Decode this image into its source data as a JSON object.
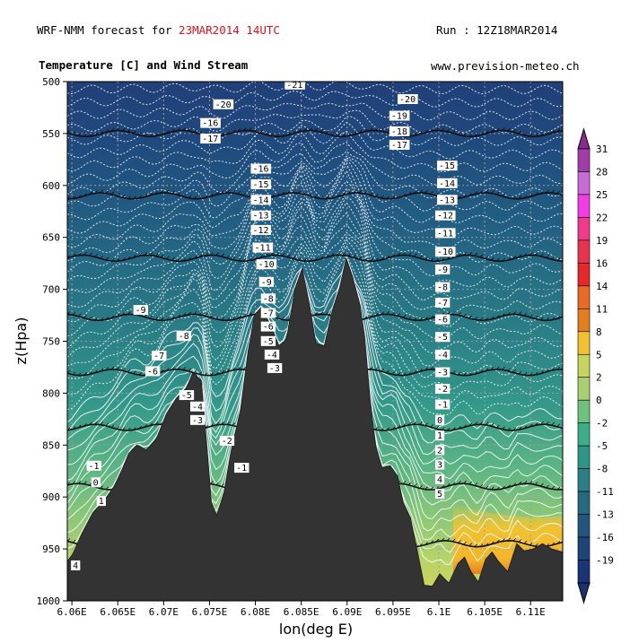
{
  "header": {
    "forecast_prefix": "WRF-NMM forecast for ",
    "forecast_date": "23MAR2014 14UTC",
    "run": "Run : 12Z18MAR2014",
    "subtitle": "Temperature [C] and Wind Stream",
    "site": "www.prevision-meteo.ch"
  },
  "chart_data": {
    "type": "heatmap",
    "title": "Temperature [C] and Wind Stream",
    "xlabel": "lon(deg E)",
    "ylabel": "z(Hpa)",
    "x_ticks": [
      "6.06E",
      "6.065E",
      "6.07E",
      "6.075E",
      "6.08E",
      "6.085E",
      "6.09E",
      "6.095E",
      "6.1E",
      "6.105E",
      "6.11E"
    ],
    "x_tick_values": [
      6.06,
      6.065,
      6.07,
      6.075,
      6.08,
      6.085,
      6.09,
      6.095,
      6.1,
      6.105,
      6.11
    ],
    "xlim": [
      6.0595,
      6.1135
    ],
    "y_ticks": [
      "500",
      "550",
      "600",
      "650",
      "700",
      "750",
      "800",
      "850",
      "900",
      "950",
      "1000"
    ],
    "y_tick_values": [
      500,
      550,
      600,
      650,
      700,
      750,
      800,
      850,
      900,
      950,
      1000
    ],
    "ylim": [
      500,
      1000
    ],
    "y_inverted": true,
    "colorbar": {
      "labels": [
        "31",
        "28",
        "25",
        "22",
        "19",
        "16",
        "14",
        "11",
        "8",
        "5",
        "2",
        "0",
        "-2",
        "-5",
        "-8",
        "-11",
        "-13",
        "-16",
        "-19"
      ],
      "colors": [
        "#a23ca8",
        "#c86ad8",
        "#f23ce6",
        "#f03a8c",
        "#e8324e",
        "#e62828",
        "#e86a26",
        "#e27e1c",
        "#f0c232",
        "#c8d460",
        "#a8d070",
        "#6cc27e",
        "#3cae8a",
        "#2e9686",
        "#2a7e86",
        "#266a82",
        "#22567e",
        "#1e447a",
        "#1a3476"
      ]
    },
    "wind_levels": [
      550,
      610,
      670,
      727,
      780,
      833,
      890,
      945
    ],
    "isotherm_labels": [
      {
        "text": "-21",
        "lon": 6.0834,
        "p": 505
      },
      {
        "text": "-20",
        "lon": 6.0756,
        "p": 524
      },
      {
        "text": "-20",
        "lon": 6.0957,
        "p": 519
      },
      {
        "text": "-19",
        "lon": 6.0948,
        "p": 535
      },
      {
        "text": "-18",
        "lon": 6.0948,
        "p": 550
      },
      {
        "text": "-17",
        "lon": 6.0948,
        "p": 563
      },
      {
        "text": "-16",
        "lon": 6.0742,
        "p": 542
      },
      {
        "text": "-17",
        "lon": 6.0742,
        "p": 557
      },
      {
        "text": "-16",
        "lon": 6.0797,
        "p": 586
      },
      {
        "text": "-15",
        "lon": 6.0797,
        "p": 601
      },
      {
        "text": "-14",
        "lon": 6.0797,
        "p": 616
      },
      {
        "text": "-13",
        "lon": 6.0797,
        "p": 631
      },
      {
        "text": "-12",
        "lon": 6.0797,
        "p": 645
      },
      {
        "text": "-11",
        "lon": 6.0799,
        "p": 662
      },
      {
        "text": "-10",
        "lon": 6.0803,
        "p": 678
      },
      {
        "text": "-9",
        "lon": 6.0806,
        "p": 695
      },
      {
        "text": "-8",
        "lon": 6.0808,
        "p": 711
      },
      {
        "text": "-7",
        "lon": 6.0808,
        "p": 725
      },
      {
        "text": "-6",
        "lon": 6.0808,
        "p": 738
      },
      {
        "text": "-5",
        "lon": 6.0808,
        "p": 752
      },
      {
        "text": "-4",
        "lon": 6.0812,
        "p": 765
      },
      {
        "text": "-3",
        "lon": 6.0815,
        "p": 778
      },
      {
        "text": "-15",
        "lon": 6.1,
        "p": 583
      },
      {
        "text": "-14",
        "lon": 6.1,
        "p": 600
      },
      {
        "text": "-13",
        "lon": 6.1,
        "p": 616
      },
      {
        "text": "-12",
        "lon": 6.0998,
        "p": 631
      },
      {
        "text": "-11",
        "lon": 6.0998,
        "p": 648
      },
      {
        "text": "-10",
        "lon": 6.0998,
        "p": 666
      },
      {
        "text": "-9",
        "lon": 6.0998,
        "p": 683
      },
      {
        "text": "-8",
        "lon": 6.0998,
        "p": 700
      },
      {
        "text": "-7",
        "lon": 6.0998,
        "p": 715
      },
      {
        "text": "-6",
        "lon": 6.0998,
        "p": 731
      },
      {
        "text": "-5",
        "lon": 6.0998,
        "p": 748
      },
      {
        "text": "-4",
        "lon": 6.0998,
        "p": 765
      },
      {
        "text": "-3",
        "lon": 6.0998,
        "p": 782
      },
      {
        "text": "-2",
        "lon": 6.0998,
        "p": 798
      },
      {
        "text": "-1",
        "lon": 6.0998,
        "p": 813
      },
      {
        "text": "0",
        "lon": 6.0998,
        "p": 828
      },
      {
        "text": "1",
        "lon": 6.0998,
        "p": 843
      },
      {
        "text": "2",
        "lon": 6.0998,
        "p": 857
      },
      {
        "text": "3",
        "lon": 6.0998,
        "p": 871
      },
      {
        "text": "4",
        "lon": 6.0998,
        "p": 885
      },
      {
        "text": "5",
        "lon": 6.0998,
        "p": 899
      },
      {
        "text": "-9",
        "lon": 6.0669,
        "p": 722
      },
      {
        "text": "-8",
        "lon": 6.0716,
        "p": 747
      },
      {
        "text": "-7",
        "lon": 6.0689,
        "p": 766
      },
      {
        "text": "-6",
        "lon": 6.0682,
        "p": 781
      },
      {
        "text": "-5",
        "lon": 6.0719,
        "p": 804
      },
      {
        "text": "-4",
        "lon": 6.0731,
        "p": 815
      },
      {
        "text": "-3",
        "lon": 6.0731,
        "p": 828
      },
      {
        "text": "-2",
        "lon": 6.0763,
        "p": 848
      },
      {
        "text": "-1",
        "lon": 6.0779,
        "p": 874
      },
      {
        "text": "-1",
        "lon": 6.0618,
        "p": 872
      },
      {
        "text": "0",
        "lon": 6.0623,
        "p": 888
      },
      {
        "text": "1",
        "lon": 6.0629,
        "p": 906
      },
      {
        "text": "4",
        "lon": 6.0601,
        "p": 968
      }
    ],
    "terrain_profile": [
      [
        6.0595,
        1000
      ],
      [
        6.0595,
        962
      ],
      [
        6.0601,
        955
      ],
      [
        6.0611,
        935
      ],
      [
        6.0623,
        915
      ],
      [
        6.0634,
        905
      ],
      [
        6.0646,
        890
      ],
      [
        6.0655,
        873
      ],
      [
        6.0662,
        858
      ],
      [
        6.0671,
        850
      ],
      [
        6.0681,
        855
      ],
      [
        6.0692,
        844
      ],
      [
        6.0703,
        820
      ],
      [
        6.0714,
        805
      ],
      [
        6.0725,
        795
      ],
      [
        6.0732,
        780
      ],
      [
        6.0741,
        788
      ],
      [
        6.0747,
        850
      ],
      [
        6.0752,
        905
      ],
      [
        6.0758,
        918
      ],
      [
        6.0766,
        895
      ],
      [
        6.0773,
        858
      ],
      [
        6.0784,
        815
      ],
      [
        6.0792,
        760
      ],
      [
        6.0799,
        725
      ],
      [
        6.0806,
        718
      ],
      [
        6.0817,
        735
      ],
      [
        6.0826,
        755
      ],
      [
        6.0834,
        748
      ],
      [
        6.0843,
        700
      ],
      [
        6.0851,
        680
      ],
      [
        6.0859,
        715
      ],
      [
        6.0866,
        752
      ],
      [
        6.0875,
        755
      ],
      [
        6.0884,
        720
      ],
      [
        6.0892,
        698
      ],
      [
        6.0899,
        670
      ],
      [
        6.0906,
        688
      ],
      [
        6.0914,
        715
      ],
      [
        6.0919,
        745
      ],
      [
        6.0925,
        805
      ],
      [
        6.0931,
        850
      ],
      [
        6.0938,
        872
      ],
      [
        6.0947,
        870
      ],
      [
        6.0955,
        880
      ],
      [
        6.0961,
        905
      ],
      [
        6.0969,
        920
      ],
      [
        6.0976,
        950
      ],
      [
        6.0984,
        985
      ],
      [
        6.0993,
        986
      ],
      [
        6.1001,
        974
      ],
      [
        6.1011,
        983
      ],
      [
        6.1021,
        964
      ],
      [
        6.1028,
        958
      ],
      [
        6.1035,
        972
      ],
      [
        6.1043,
        982
      ],
      [
        6.1051,
        960
      ],
      [
        6.1058,
        953
      ],
      [
        6.1065,
        962
      ],
      [
        6.1075,
        972
      ],
      [
        6.1085,
        945
      ],
      [
        6.1093,
        952
      ],
      [
        6.1103,
        950
      ],
      [
        6.1113,
        945
      ],
      [
        6.1123,
        950
      ],
      [
        6.1135,
        953
      ],
      [
        6.1135,
        1000
      ]
    ]
  }
}
